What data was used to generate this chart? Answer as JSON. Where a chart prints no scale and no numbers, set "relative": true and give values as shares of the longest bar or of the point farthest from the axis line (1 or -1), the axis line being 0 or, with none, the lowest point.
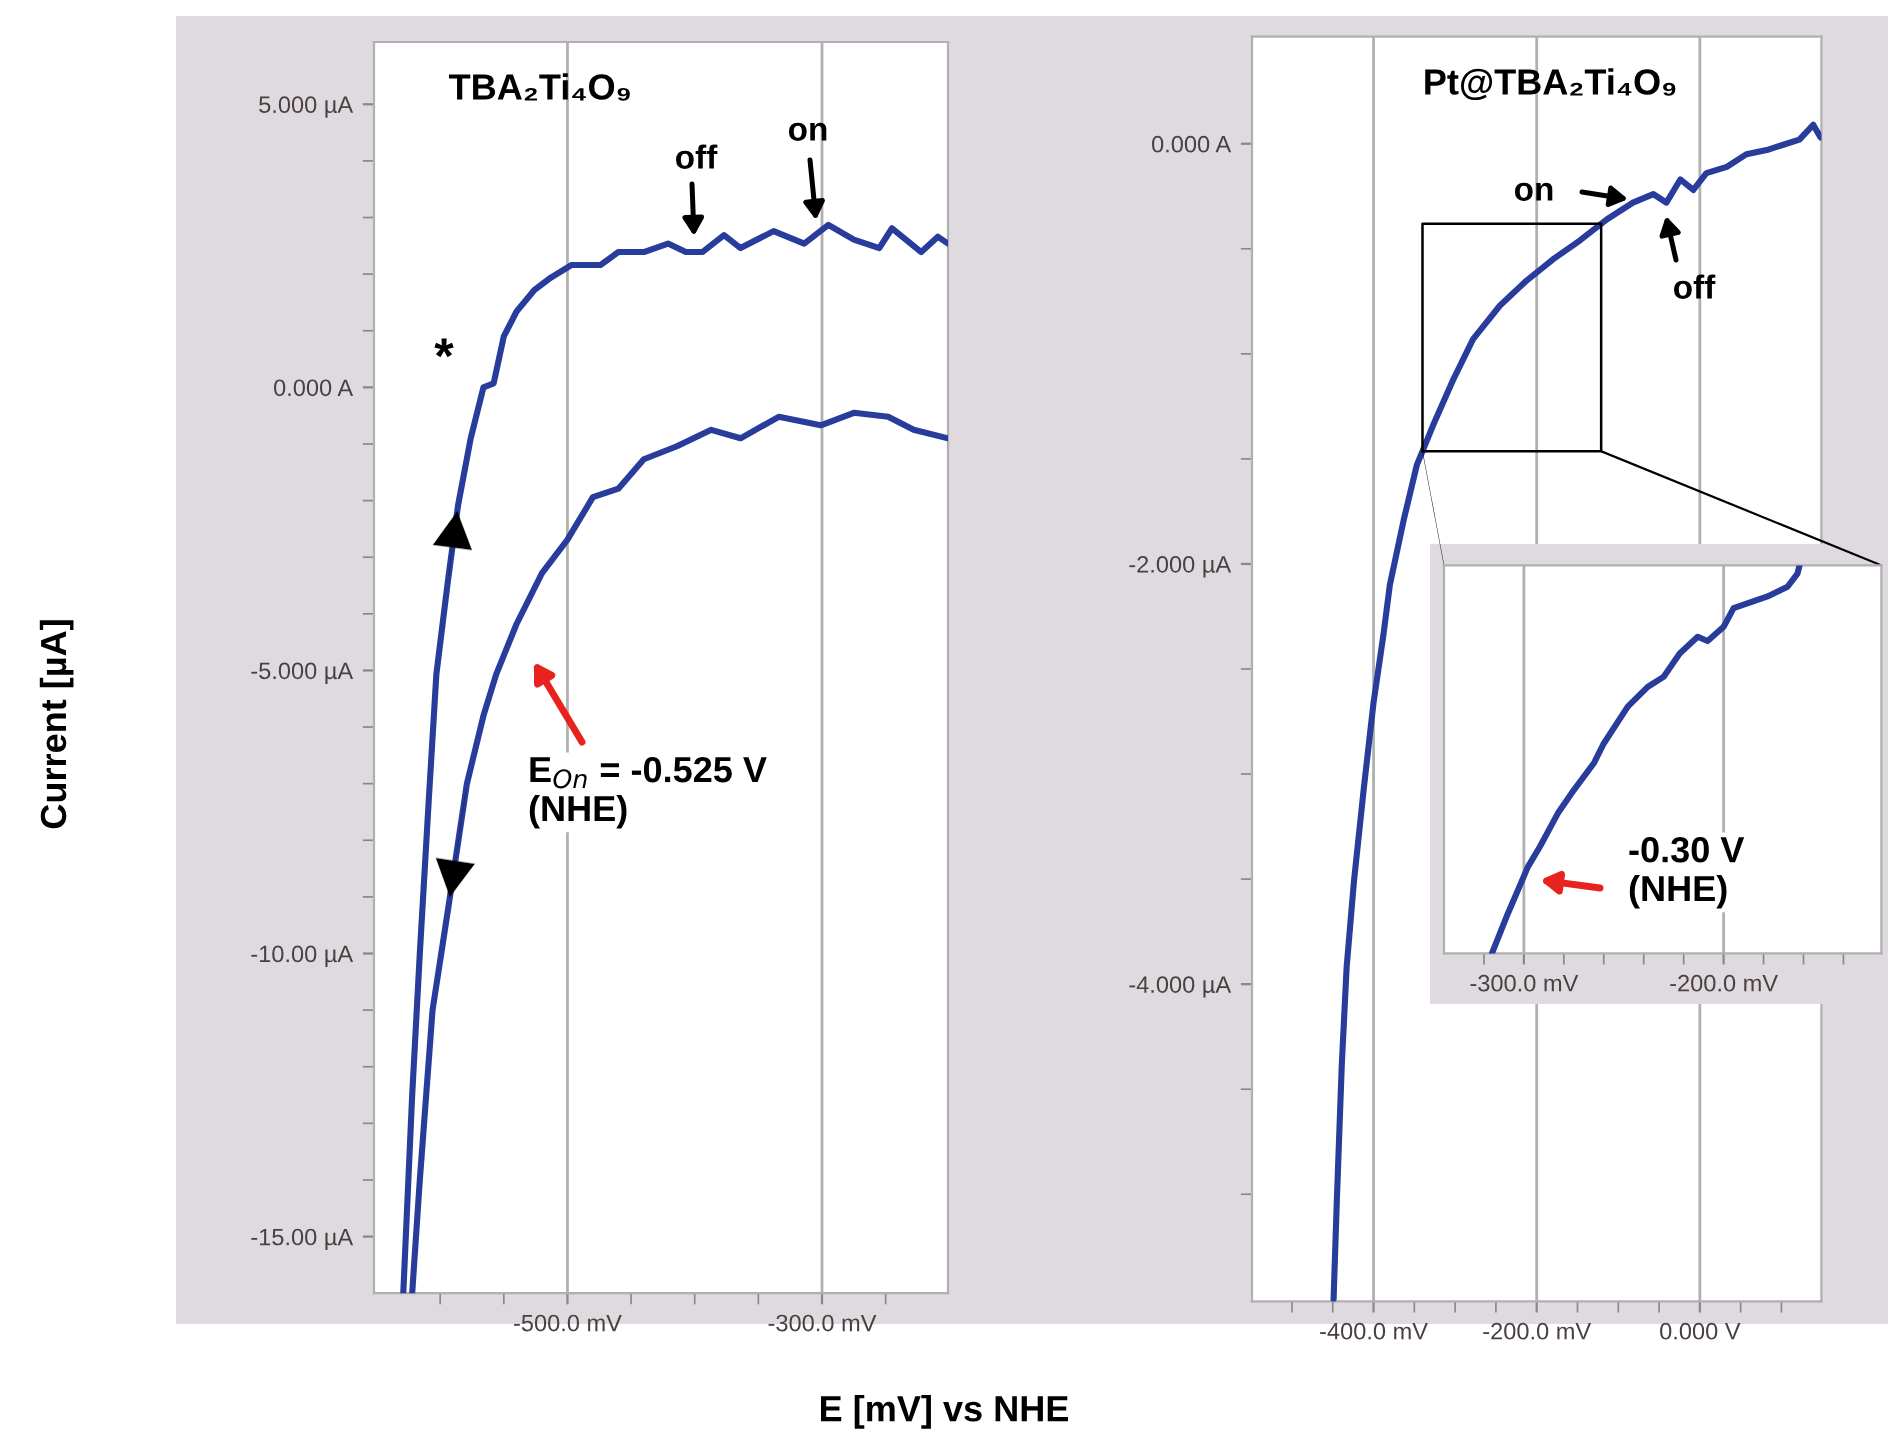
{
  "chart_data": [
    {
      "type": "line",
      "title": "TBA₂Ti₄O₉",
      "xlabel": "E [mV] vs NHE",
      "ylabel": "Current [µA]",
      "xlim": [
        -652,
        -201
      ],
      "ylim": [
        -16,
        6.1
      ],
      "xticks": [
        {
          "value": -600,
          "label": null
        },
        {
          "value": -550,
          "label": null
        },
        {
          "value": -500,
          "label": "-500.0 mV"
        },
        {
          "value": -450,
          "label": null
        },
        {
          "value": -400,
          "label": null
        },
        {
          "value": -350,
          "label": null
        },
        {
          "value": -300,
          "label": "-300.0 mV"
        },
        {
          "value": -250,
          "label": null
        }
      ],
      "yticks": [
        {
          "value": 5,
          "label": "5.000 µA"
        },
        {
          "value": 4,
          "label": null
        },
        {
          "value": 3,
          "label": null
        },
        {
          "value": 2,
          "label": null
        },
        {
          "value": 1,
          "label": null
        },
        {
          "value": 0,
          "label": "0.000 A"
        },
        {
          "value": -1,
          "label": null
        },
        {
          "value": -2,
          "label": null
        },
        {
          "value": -3,
          "label": null
        },
        {
          "value": -4,
          "label": null
        },
        {
          "value": -5,
          "label": "-5.000 µA"
        },
        {
          "value": -6,
          "label": null
        },
        {
          "value": -7,
          "label": null
        },
        {
          "value": -8,
          "label": null
        },
        {
          "value": -9,
          "label": null
        },
        {
          "value": -10,
          "label": "-10.00 µA"
        },
        {
          "value": -11,
          "label": null
        },
        {
          "value": -12,
          "label": null
        },
        {
          "value": -13,
          "label": null
        },
        {
          "value": -14,
          "label": null
        },
        {
          "value": -15,
          "label": "-15.00 µA"
        }
      ],
      "grid": "x",
      "series": [
        {
          "color": "#283c9c",
          "x": [
            -629,
            -622,
            -616,
            -609,
            -603,
            -594,
            -586,
            -576,
            -566,
            -558,
            -550,
            -540,
            -526,
            -513,
            -497,
            -474,
            -460,
            -440,
            -421,
            -407,
            -394,
            -377,
            -364,
            -338,
            -314,
            -295,
            -275,
            -255,
            -245,
            -222,
            -209,
            -201
          ],
          "values": [
            -16.0,
            -12.5,
            -10.0,
            -7.3,
            -5.07,
            -3.43,
            -2.09,
            -0.9,
            0,
            0.07,
            0.9,
            1.34,
            1.72,
            1.94,
            2.16,
            2.16,
            2.39,
            2.39,
            2.54,
            2.39,
            2.39,
            2.69,
            2.46,
            2.76,
            2.54,
            2.87,
            2.61,
            2.46,
            2.81,
            2.39,
            2.66,
            2.54
          ]
        },
        {
          "color": "#283c9c",
          "x": [
            -622,
            -616,
            -606,
            -593,
            -579,
            -566,
            -556,
            -540,
            -520,
            -500,
            -480,
            -460,
            -440,
            -414,
            -387,
            -364,
            -334,
            -301,
            -275,
            -248,
            -228,
            -201
          ],
          "values": [
            -16.0,
            -14.0,
            -11.0,
            -9.1,
            -7.0,
            -5.8,
            -5.07,
            -4.18,
            -3.28,
            -2.69,
            -1.94,
            -1.79,
            -1.27,
            -1.04,
            -0.75,
            -0.9,
            -0.52,
            -0.67,
            -0.45,
            -0.52,
            -0.75,
            -0.9
          ]
        }
      ],
      "annotations": [
        "*",
        "off",
        "on",
        "E$_{On}$ = -0.525 V\n(NHE)"
      ]
    },
    {
      "type": "line",
      "title": "Pt@TBA₂Ti₄O₉",
      "xlim": [
        -549,
        149
      ],
      "ylim": [
        -5.51,
        0.51
      ],
      "xticks": [
        {
          "value": -500,
          "label": null
        },
        {
          "value": -450,
          "label": null
        },
        {
          "value": -400,
          "label": "-400.0 mV"
        },
        {
          "value": -350,
          "label": null
        },
        {
          "value": -300,
          "label": null
        },
        {
          "value": -250,
          "label": null
        },
        {
          "value": -200,
          "label": "-200.0 mV"
        },
        {
          "value": -150,
          "label": null
        },
        {
          "value": -100,
          "label": null
        },
        {
          "value": -50,
          "label": null
        },
        {
          "value": 0,
          "label": "0.000 V"
        },
        {
          "value": 50,
          "label": null
        },
        {
          "value": 100,
          "label": null
        }
      ],
      "yticks": [
        {
          "value": 0,
          "label": "0.000 A"
        },
        {
          "value": -0.5,
          "label": null
        },
        {
          "value": -1,
          "label": null
        },
        {
          "value": -1.5,
          "label": null
        },
        {
          "value": -2,
          "label": "-2.000 µA"
        },
        {
          "value": -2.5,
          "label": null
        },
        {
          "value": -3,
          "label": null
        },
        {
          "value": -3.5,
          "label": null
        },
        {
          "value": -4,
          "label": "-4.000 µA"
        },
        {
          "value": -4.5,
          "label": null
        },
        {
          "value": -5,
          "label": null
        }
      ],
      "grid": "x",
      "series": [
        {
          "color": "#283c9c",
          "x": [
            -449,
            -445,
            -439,
            -433,
            -424,
            -412,
            -400,
            -388,
            -380,
            -363,
            -347,
            -327,
            -302,
            -278,
            -245,
            -212,
            -180,
            -147,
            -114,
            -82,
            -57,
            -41,
            -24,
            -8,
            8,
            33,
            57,
            82,
            106,
            122,
            139,
            148
          ],
          "values": [
            -5.5,
            -5.03,
            -4.39,
            -3.92,
            -3.51,
            -3.07,
            -2.66,
            -2.34,
            -2.1,
            -1.79,
            -1.53,
            -1.34,
            -1.12,
            -0.93,
            -0.77,
            -0.65,
            -0.55,
            -0.46,
            -0.36,
            -0.28,
            -0.24,
            -0.28,
            -0.17,
            -0.22,
            -0.14,
            -0.11,
            -0.05,
            -0.03,
            0,
            0.02,
            0.09,
            0.03
          ]
        }
      ],
      "annotations": [
        {
          "text": "on",
          "x": -78,
          "y": -0.27
        },
        "off"
      ]
    },
    {
      "type": "line",
      "relative": true,
      "xlim": [
        -340,
        -121
      ],
      "xticks": [
        {
          "value": -320,
          "label": null
        },
        {
          "value": -300,
          "label": "-300.0 mV"
        },
        {
          "value": -280,
          "label": null
        },
        {
          "value": -260,
          "label": null
        },
        {
          "value": -240,
          "label": null
        },
        {
          "value": -220,
          "label": null
        },
        {
          "value": -200,
          "label": "-200.0 mV"
        },
        {
          "value": -180,
          "label": null
        },
        {
          "value": -160,
          "label": null
        },
        {
          "value": -140,
          "label": null
        }
      ],
      "grid": "x",
      "series": [
        {
          "color": "#283c9c",
          "x": [
            -316,
            -308,
            -298,
            -292,
            -283,
            -275,
            -265,
            -260,
            -248,
            -238,
            -230,
            -222,
            -213,
            -208,
            -200,
            -195,
            -178,
            -168,
            -163,
            -162
          ],
          "values": [
            0,
            0.103,
            0.223,
            0.275,
            0.361,
            0.421,
            0.49,
            0.541,
            0.636,
            0.687,
            0.713,
            0.773,
            0.816,
            0.805,
            0.842,
            0.89,
            0.92,
            0.945,
            0.979,
            1.0
          ]
        }
      ],
      "annotations": [
        "-0.30 V\n(NHE)"
      ]
    }
  ]
}
